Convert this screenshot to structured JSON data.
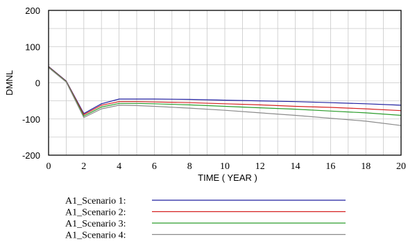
{
  "chart_data": {
    "type": "line",
    "title": "",
    "xlabel": "TIME ( YEAR )",
    "ylabel": "DMNL",
    "xlim": [
      0,
      20
    ],
    "ylim": [
      -200,
      200
    ],
    "x_ticks": [
      0,
      2,
      4,
      6,
      8,
      10,
      12,
      14,
      16,
      18,
      20
    ],
    "y_ticks": [
      200,
      100,
      0,
      -100,
      -200
    ],
    "grid": true,
    "legend_position": "bottom",
    "x": [
      0,
      1,
      2,
      3,
      4,
      5,
      6,
      8,
      10,
      12,
      14,
      16,
      18,
      20
    ],
    "series": [
      {
        "name": "A1_Scenario 1:",
        "color": "#1f1f9f",
        "values": [
          45,
          5,
          -85,
          -58,
          -45,
          -45,
          -45,
          -46,
          -48,
          -50,
          -52,
          -55,
          -58,
          -62
        ]
      },
      {
        "name": "A1_Scenario 2:",
        "color": "#d42020",
        "values": [
          44,
          4,
          -88,
          -62,
          -52,
          -52,
          -53,
          -55,
          -58,
          -61,
          -65,
          -68,
          -72,
          -77
        ]
      },
      {
        "name": "A1_Scenario 3:",
        "color": "#2a9c2a",
        "values": [
          43,
          3,
          -92,
          -67,
          -57,
          -57,
          -58,
          -61,
          -65,
          -69,
          -73,
          -78,
          -83,
          -90
        ]
      },
      {
        "name": "A1_Scenario 4:",
        "color": "#8a8a8a",
        "values": [
          42,
          2,
          -96,
          -72,
          -62,
          -63,
          -65,
          -70,
          -76,
          -83,
          -90,
          -98,
          -106,
          -118
        ]
      }
    ]
  }
}
